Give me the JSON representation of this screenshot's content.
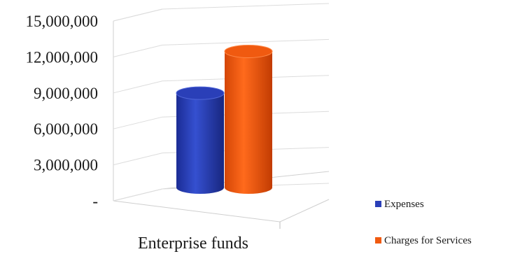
{
  "chart_data": {
    "type": "bar",
    "style": "3d-cylinder",
    "categories": [
      "Enterprise funds"
    ],
    "series": [
      {
        "name": "Expenses",
        "values": [
          9500000
        ],
        "color": "#2a3fb8"
      },
      {
        "name": "Charges for Services",
        "values": [
          13700000
        ],
        "color": "#f05a10"
      }
    ],
    "ylim": [
      0,
      15000000
    ],
    "yticks": [
      0,
      3000000,
      6000000,
      9000000,
      12000000,
      15000000
    ],
    "ytick_labels": [
      "-",
      "3,000,000",
      "6,000,000",
      "9,000,000",
      "12,000,000",
      "15,000,000"
    ],
    "grid": true,
    "legend_position": "bottom-right"
  }
}
